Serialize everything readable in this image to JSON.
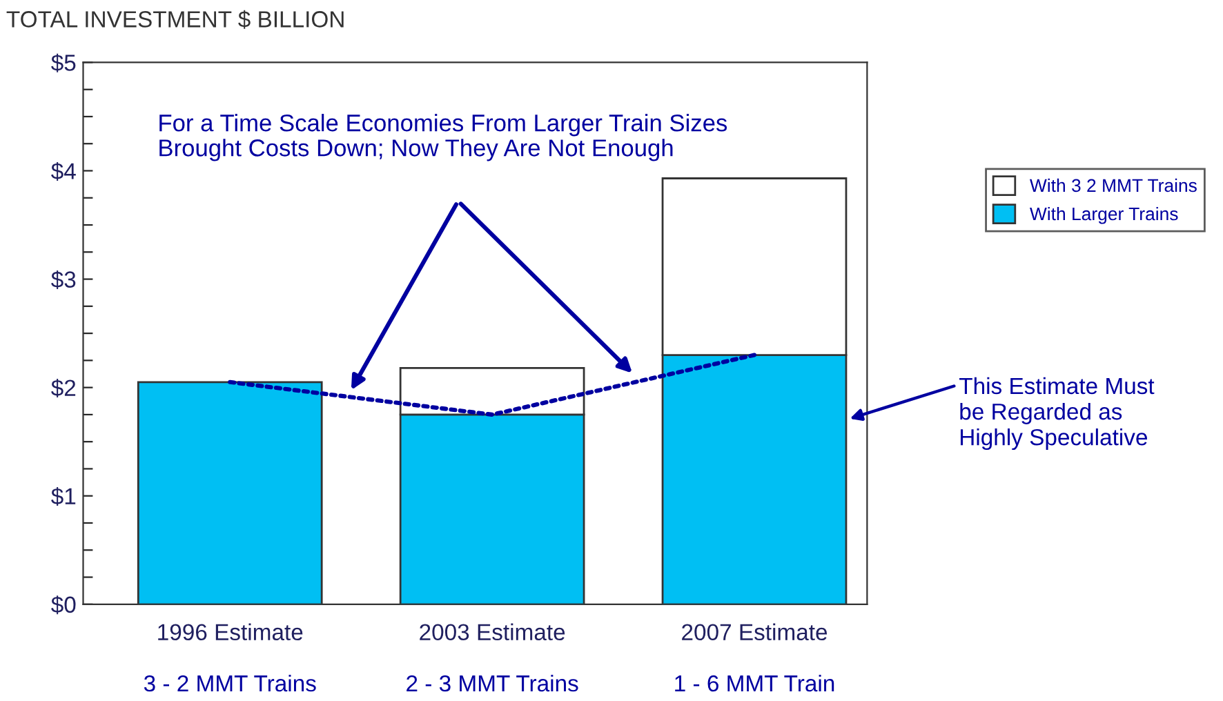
{
  "chart_data": {
    "type": "bar",
    "title": "TOTAL INVESTMENT $ BILLION",
    "categories": [
      "1996 Estimate",
      "2003 Estimate",
      "2007 Estimate"
    ],
    "stacked": true,
    "series": [
      {
        "name": "With Larger Trains",
        "color": "#00bff3",
        "values": [
          2.05,
          1.75,
          2.3
        ]
      },
      {
        "name": "With 3 2 MMT Trains",
        "color": "#ffffff",
        "values": [
          null,
          0.43,
          1.63
        ]
      },
      {
        "type": "line",
        "color": "#0000a0",
        "line_style": "dotted",
        "values": [
          2.05,
          1.75,
          2.3
        ]
      }
    ],
    "ylim": [
      0,
      5
    ],
    "yticks": [
      {
        "value": 0,
        "label": "$0"
      },
      {
        "value": 0.25,
        "label": null
      },
      {
        "value": 0.5,
        "label": null
      },
      {
        "value": 0.75,
        "label": null
      },
      {
        "value": 1,
        "label": "$1"
      },
      {
        "value": 1.25,
        "label": null
      },
      {
        "value": 1.5,
        "label": null
      },
      {
        "value": 1.75,
        "label": null
      },
      {
        "value": 2,
        "label": "$2"
      },
      {
        "value": 2.25,
        "label": null
      },
      {
        "value": 2.5,
        "label": null
      },
      {
        "value": 2.75,
        "label": null
      },
      {
        "value": 3,
        "label": "$3"
      },
      {
        "value": 3.25,
        "label": null
      },
      {
        "value": 3.5,
        "label": null
      },
      {
        "value": 3.75,
        "label": null
      },
      {
        "value": 4,
        "label": "$4"
      },
      {
        "value": 4.25,
        "label": null
      },
      {
        "value": 4.5,
        "label": null
      },
      {
        "value": 4.75,
        "label": null
      },
      {
        "value": 5,
        "label": "$5"
      }
    ],
    "grid": false,
    "legend": "right",
    "annotations": [
      "For a Time Scale Economies From Larger Train Sizes Brought Costs Down; Now They Are Not Enough",
      "This Estimate Must be Regarded as Highly Speculative",
      "3 - 2 MMT Trains",
      "2 - 3 MMT Trains",
      "1 - 6 MMT Train"
    ]
  }
}
